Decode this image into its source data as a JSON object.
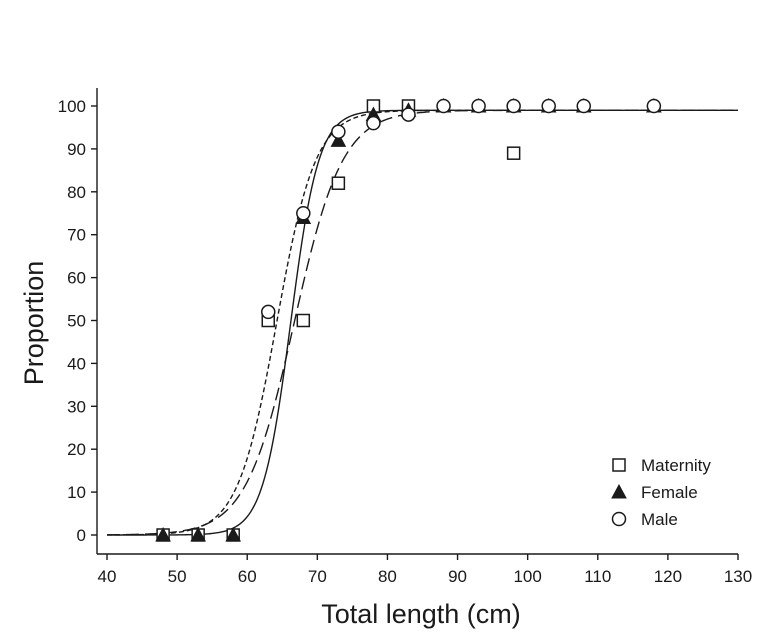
{
  "chart_data": {
    "type": "scatter",
    "title": "",
    "xlabel": "Total length (cm)",
    "ylabel": "Proportion",
    "xlim": [
      40,
      130
    ],
    "ylim": [
      0,
      100
    ],
    "xticks": [
      40,
      50,
      60,
      70,
      80,
      90,
      100,
      110,
      120,
      130
    ],
    "yticks": [
      0,
      10,
      20,
      30,
      40,
      50,
      60,
      70,
      80,
      90,
      100
    ],
    "grid": false,
    "legend_position": "bottom-right",
    "series": [
      {
        "name": "Maternity",
        "marker": "open-square",
        "points": [
          {
            "x": 48,
            "y": 0
          },
          {
            "x": 53,
            "y": 0
          },
          {
            "x": 58,
            "y": 0
          },
          {
            "x": 63,
            "y": 50
          },
          {
            "x": 68,
            "y": 50
          },
          {
            "x": 73,
            "y": 82
          },
          {
            "x": 78,
            "y": 100
          },
          {
            "x": 83,
            "y": 100
          },
          {
            "x": 98,
            "y": 89
          }
        ],
        "fit": {
          "line_style": "solid",
          "midpoint": 66.2,
          "slope": 0.5,
          "asymptote": 99
        }
      },
      {
        "name": "Female",
        "marker": "filled-triangle",
        "points": [
          {
            "x": 48,
            "y": 0
          },
          {
            "x": 53,
            "y": 0
          },
          {
            "x": 58,
            "y": 0
          },
          {
            "x": 68,
            "y": 74
          },
          {
            "x": 73,
            "y": 92
          },
          {
            "x": 78,
            "y": 98
          },
          {
            "x": 83,
            "y": 99
          },
          {
            "x": 88,
            "y": 100
          },
          {
            "x": 93,
            "y": 100
          },
          {
            "x": 98,
            "y": 100
          },
          {
            "x": 103,
            "y": 100
          },
          {
            "x": 108,
            "y": 100
          },
          {
            "x": 118,
            "y": 100
          }
        ],
        "fit": {
          "line_style": "long-dash",
          "midpoint": 66.7,
          "slope": 0.29,
          "asymptote": 99
        }
      },
      {
        "name": "Male",
        "marker": "open-circle",
        "points": [
          {
            "x": 63,
            "y": 52
          },
          {
            "x": 68,
            "y": 75
          },
          {
            "x": 73,
            "y": 94
          },
          {
            "x": 78,
            "y": 96
          },
          {
            "x": 83,
            "y": 98
          },
          {
            "x": 88,
            "y": 100
          },
          {
            "x": 93,
            "y": 100
          },
          {
            "x": 98,
            "y": 100
          },
          {
            "x": 103,
            "y": 100
          },
          {
            "x": 108,
            "y": 100
          },
          {
            "x": 118,
            "y": 100
          }
        ],
        "fit": {
          "line_style": "short-dash",
          "midpoint": 64.2,
          "slope": 0.36,
          "asymptote": 99
        }
      }
    ]
  }
}
